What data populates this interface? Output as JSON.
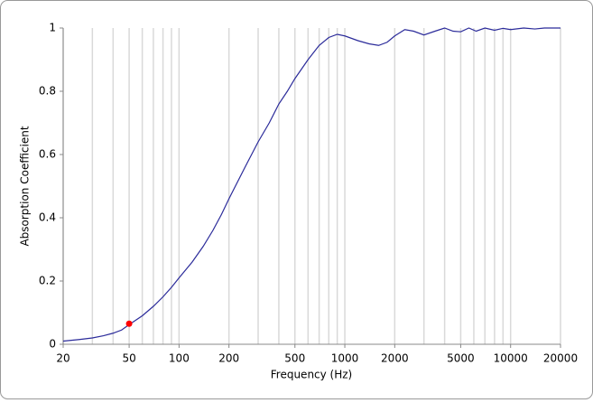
{
  "chart_data": {
    "type": "line",
    "xlabel": "Frequency (Hz)",
    "ylabel": "Absorption Coefficient",
    "xscale": "log",
    "x": [
      20,
      25,
      30,
      35,
      40,
      45,
      50,
      60,
      70,
      80,
      90,
      100,
      120,
      140,
      160,
      180,
      200,
      250,
      300,
      350,
      400,
      450,
      500,
      600,
      700,
      800,
      900,
      1000,
      1200,
      1400,
      1600,
      1800,
      2000,
      2300,
      2600,
      3000,
      3500,
      4000,
      4500,
      5000,
      5600,
      6200,
      7000,
      8000,
      9000,
      10000,
      12000,
      14000,
      16000,
      20000
    ],
    "values": [
      0.01,
      0.015,
      0.02,
      0.027,
      0.035,
      0.045,
      0.062,
      0.09,
      0.12,
      0.15,
      0.18,
      0.21,
      0.26,
      0.31,
      0.36,
      0.41,
      0.46,
      0.56,
      0.64,
      0.7,
      0.76,
      0.8,
      0.84,
      0.9,
      0.945,
      0.97,
      0.98,
      0.975,
      0.96,
      0.95,
      0.945,
      0.955,
      0.975,
      0.995,
      0.99,
      0.978,
      0.99,
      1,
      0.99,
      0.988,
      1,
      0.99,
      1,
      0.993,
      0.999,
      0.995,
      1,
      0.997,
      1,
      1
    ],
    "color": "#2b2b9a",
    "marker": {
      "x": 50,
      "y": 0.065,
      "color": "#ff0000"
    },
    "xlim": [
      20,
      20000
    ],
    "ylim": [
      0,
      1
    ],
    "xticks": [
      20,
      50,
      100,
      200,
      500,
      1000,
      2000,
      5000,
      10000,
      20000
    ],
    "xgrid": [
      20,
      30,
      40,
      50,
      60,
      70,
      80,
      90,
      100,
      200,
      300,
      400,
      500,
      600,
      700,
      800,
      900,
      1000,
      2000,
      3000,
      4000,
      5000,
      6000,
      7000,
      8000,
      9000,
      10000,
      20000
    ],
    "yticks": [
      0,
      0.2,
      0.4,
      0.6,
      0.8,
      1
    ]
  }
}
